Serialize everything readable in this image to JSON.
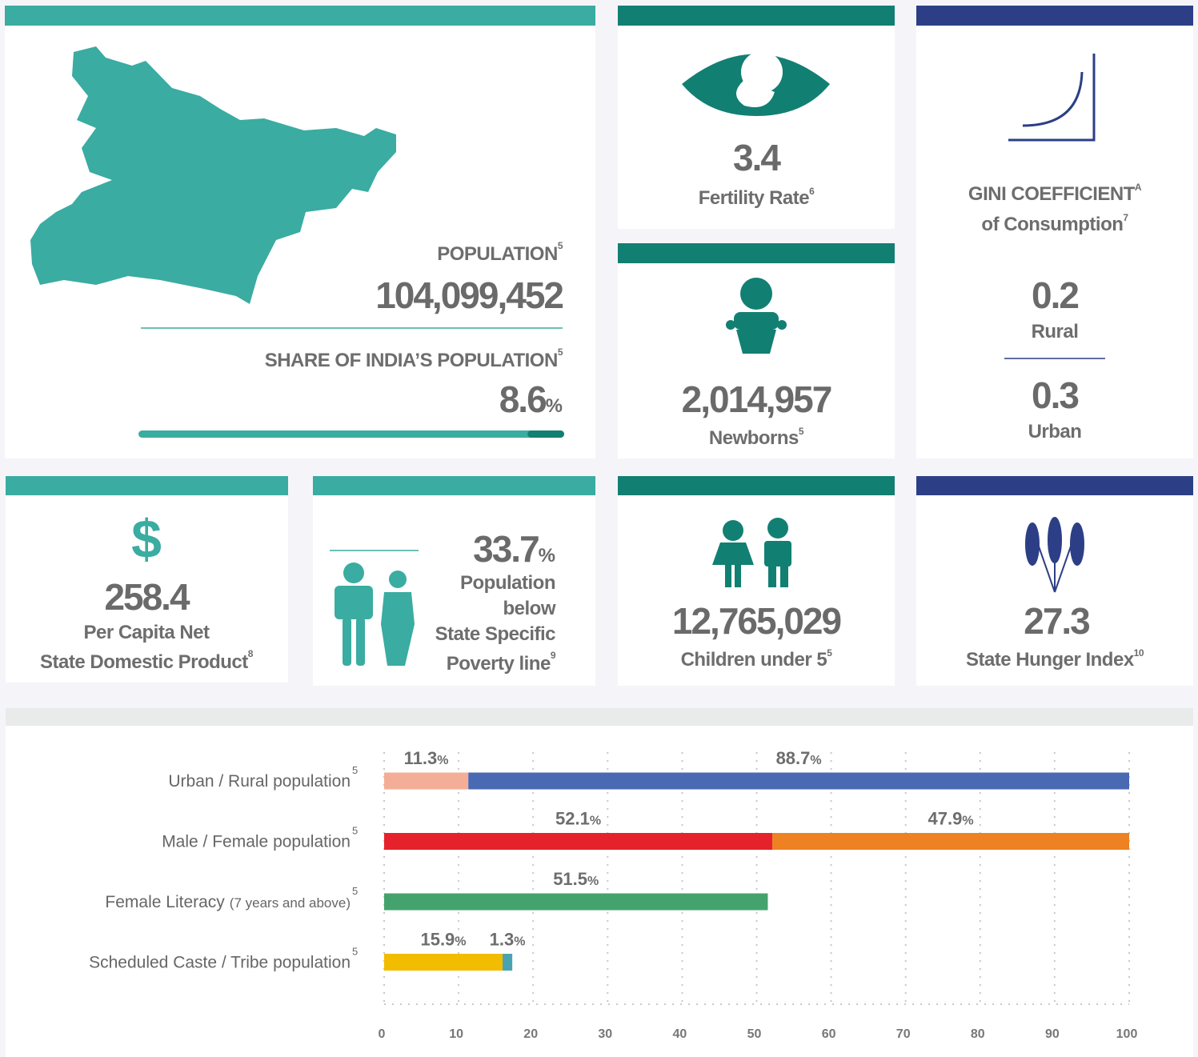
{
  "population": {
    "label": "POPULATION",
    "note": "5",
    "value": "104,099,452"
  },
  "share": {
    "label": "SHARE OF INDIA’S POPULATION",
    "note": "5",
    "value": 8.6,
    "unit": "%"
  },
  "fertility": {
    "value": 3.4,
    "label": "Fertility Rate",
    "note": "6"
  },
  "newborns": {
    "value": "2,014,957",
    "label": "Newborns",
    "note": "5"
  },
  "gini": {
    "title": "GINI COEFFICIENT",
    "title_note": "A",
    "subtitle": "of Consumption",
    "subtitle_note": "7",
    "rural": {
      "value": 0.2,
      "label": "Rural"
    },
    "urban": {
      "value": 0.3,
      "label": "Urban"
    }
  },
  "sndp": {
    "symbol": "$",
    "value": 258.4,
    "lines": [
      "Per Capita Net",
      "State Domestic Product"
    ],
    "note": "8"
  },
  "poverty": {
    "value": 33.7,
    "unit": "%",
    "lines": [
      "Population",
      "below",
      "State Specific",
      "Poverty line"
    ],
    "note": "9"
  },
  "children": {
    "value": "12,765,029",
    "label": "Children under 5",
    "note": "5"
  },
  "hunger": {
    "value": 27.3,
    "label": "State Hunger Index",
    "note": "10"
  },
  "chart_data": {
    "type": "bar",
    "orientation": "horizontal",
    "stacked": true,
    "categories": [
      "Urban / Rural population",
      "Male / Female population",
      "Female Literacy",
      "Scheduled Caste / Tribe population"
    ],
    "category_details": [
      null,
      null,
      "(7 years and above)",
      null
    ],
    "category_notes": [
      "5",
      "5",
      "5",
      "5"
    ],
    "series": [
      {
        "colors": [
          "#f4ae97",
          "#e5222b",
          "#44a36d",
          "#f2bc00"
        ],
        "values": [
          11.3,
          52.1,
          51.5,
          15.9
        ]
      },
      {
        "colors": [
          "#4a69b3",
          "#ee8122",
          null,
          "#4aa3b2"
        ],
        "values": [
          88.7,
          47.9,
          null,
          1.3
        ]
      }
    ],
    "unit": "%",
    "xlim": [
      0,
      100
    ],
    "xticks": [
      0,
      10,
      20,
      30,
      40,
      50,
      60,
      70,
      80,
      90,
      100
    ],
    "grid": true
  }
}
